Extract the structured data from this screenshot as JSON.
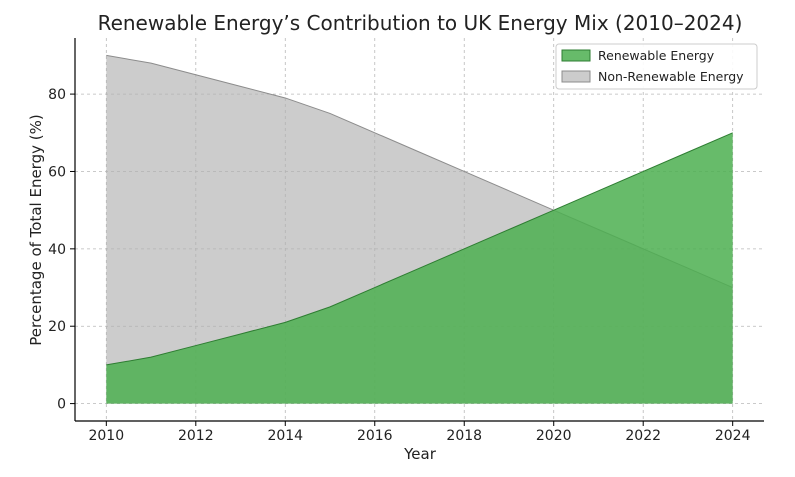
{
  "chart_data": {
    "type": "area",
    "title": "Renewable Energy’s Contribution to UK Energy Mix (2010–2024)",
    "xlabel": "Year",
    "ylabel": "Percentage of Total Energy (%)",
    "x": [
      2010,
      2011,
      2012,
      2013,
      2014,
      2015,
      2016,
      2017,
      2018,
      2019,
      2020,
      2021,
      2022,
      2023,
      2024
    ],
    "xlim": [
      2009.3,
      2024.7
    ],
    "ylim": [
      -4.5,
      94.5
    ],
    "xticks": [
      2010,
      2012,
      2014,
      2016,
      2018,
      2020,
      2022,
      2024
    ],
    "yticks": [
      0,
      20,
      40,
      60,
      80
    ],
    "grid": true,
    "legend_position": "top-right",
    "series": [
      {
        "name": "Renewable Energy",
        "values": [
          10,
          12,
          15,
          18,
          21,
          25,
          30,
          35,
          40,
          45,
          50,
          55,
          60,
          65,
          70
        ],
        "color": "#4caf50"
      },
      {
        "name": "Non-Renewable Energy",
        "values": [
          90,
          88,
          85,
          82,
          79,
          75,
          70,
          65,
          60,
          55,
          50,
          45,
          40,
          35,
          30
        ],
        "color": "#b0b0b0"
      }
    ]
  }
}
